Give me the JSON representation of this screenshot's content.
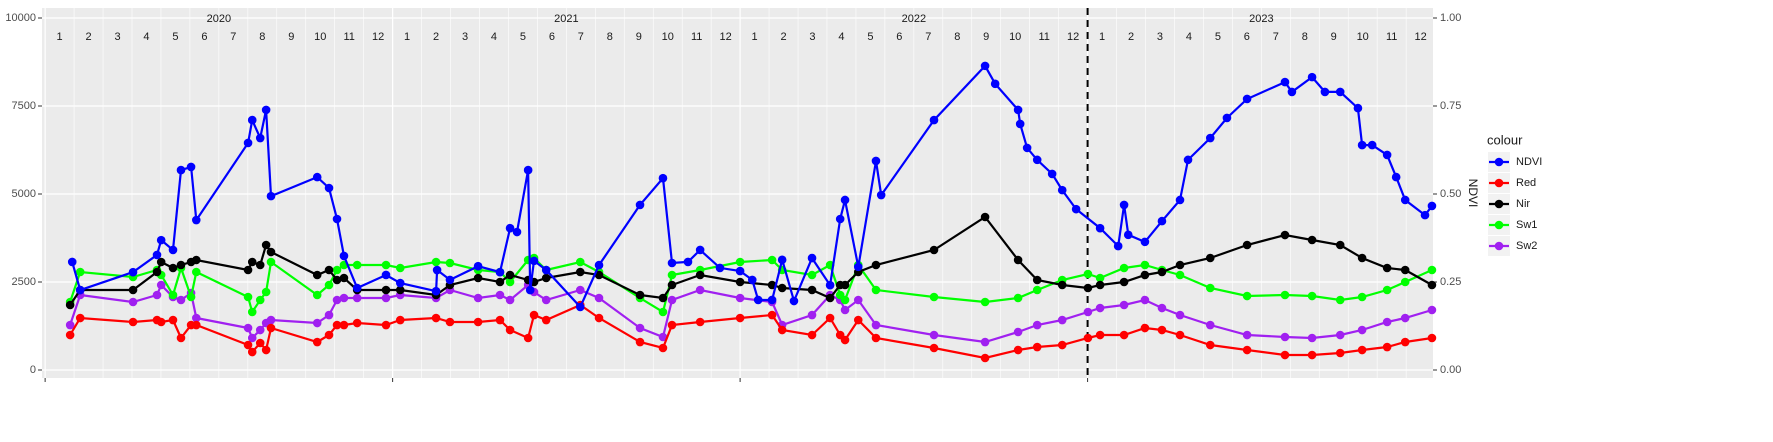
{
  "chart_data": {
    "type": "line",
    "y2label": "NDVI",
    "legend_title": "colour",
    "legend": "right",
    "grid": true,
    "strip": {
      "years": [
        "2020",
        "2021",
        "2022",
        "2023"
      ],
      "months": [
        "1",
        "2",
        "3",
        "4",
        "5",
        "6",
        "7",
        "8",
        "9",
        "10",
        "11",
        "12"
      ]
    },
    "xlim": [
      2019.991,
      2023.994
    ],
    "xticks": [
      2020,
      2021,
      2022,
      2023
    ],
    "vline": 2023,
    "ylim": [
      -227,
      10284
    ],
    "yticks": [
      0,
      2500,
      5000,
      7500,
      10000
    ],
    "y2lim": [
      -0.0227,
      1.0284
    ],
    "y2ticks": [
      {
        "value": 0,
        "label": "0.00"
      },
      {
        "value": 0.25,
        "label": "0.25"
      },
      {
        "value": 0.5,
        "label": "0.50"
      },
      {
        "value": 0.75,
        "label": "0.75"
      },
      {
        "value": 1,
        "label": "1.00"
      }
    ],
    "series": [
      {
        "name": "NDVI",
        "color": "#0000ff",
        "axis": "y2",
        "x": [
          2020.078,
          2020.101,
          2020.253,
          2020.322,
          2020.334,
          2020.368,
          2020.391,
          2020.42,
          2020.435,
          2020.584,
          2020.596,
          2020.619,
          2020.636,
          2020.65,
          2020.783,
          2020.817,
          2020.84,
          2020.86,
          2020.898,
          2020.981,
          2021.022,
          2021.125,
          2021.128,
          2021.165,
          2021.246,
          2021.309,
          2021.338,
          2021.358,
          2021.39,
          2021.396,
          2021.407,
          2021.442,
          2021.54,
          2021.594,
          2021.712,
          2021.778,
          2021.804,
          2021.85,
          2021.885,
          2021.942,
          2022.0,
          2022.035,
          2022.052,
          2022.092,
          2022.121,
          2022.155,
          2022.207,
          2022.259,
          2022.288,
          2022.302,
          2022.34,
          2022.391,
          2022.406,
          2022.558,
          2022.705,
          2022.734,
          2022.8,
          2022.806,
          2022.826,
          2022.855,
          2022.898,
          2022.927,
          2022.967,
          2023.036,
          2023.088,
          2023.105,
          2023.117,
          2023.165,
          2023.214,
          2023.266,
          2023.289,
          2023.353,
          2023.401,
          2023.459,
          2023.568,
          2023.588,
          2023.646,
          2023.683,
          2023.727,
          2023.778,
          2023.79,
          2023.819,
          2023.862,
          2023.888,
          2023.914,
          2023.971,
          2023.991
        ],
        "values": [
          0.307,
          0.227,
          0.278,
          0.327,
          0.369,
          0.341,
          0.568,
          0.577,
          0.426,
          0.645,
          0.71,
          0.659,
          0.739,
          0.494,
          0.548,
          0.517,
          0.429,
          0.324,
          0.233,
          0.27,
          0.247,
          0.224,
          0.284,
          0.256,
          0.295,
          0.278,
          0.403,
          0.392,
          0.568,
          0.227,
          0.31,
          0.284,
          0.179,
          0.298,
          0.469,
          0.545,
          0.304,
          0.307,
          0.341,
          0.29,
          0.281,
          0.256,
          0.199,
          0.199,
          0.313,
          0.196,
          0.318,
          0.241,
          0.429,
          0.483,
          0.293,
          0.594,
          0.497,
          0.71,
          0.864,
          0.813,
          0.739,
          0.699,
          0.631,
          0.597,
          0.557,
          0.511,
          0.457,
          0.403,
          0.352,
          0.469,
          0.384,
          0.364,
          0.423,
          0.483,
          0.597,
          0.659,
          0.716,
          0.77,
          0.818,
          0.79,
          0.832,
          0.79,
          0.79,
          0.744,
          0.639,
          0.639,
          0.611,
          0.548,
          0.483,
          0.44,
          0.466
        ]
      },
      {
        "name": "Red",
        "color": "#ff0000",
        "x": [
          2020.072,
          2020.101,
          2020.253,
          2020.322,
          2020.334,
          2020.368,
          2020.391,
          2020.42,
          2020.435,
          2020.584,
          2020.596,
          2020.619,
          2020.636,
          2020.65,
          2020.783,
          2020.817,
          2020.84,
          2020.86,
          2020.898,
          2020.981,
          2021.022,
          2021.125,
          2021.165,
          2021.246,
          2021.309,
          2021.338,
          2021.39,
          2021.407,
          2021.442,
          2021.54,
          2021.594,
          2021.712,
          2021.778,
          2021.804,
          2021.885,
          2022.0,
          2022.092,
          2022.121,
          2022.207,
          2022.259,
          2022.288,
          2022.302,
          2022.34,
          2022.391,
          2022.558,
          2022.705,
          2022.8,
          2022.855,
          2022.927,
          2023.001,
          2023.036,
          2023.105,
          2023.165,
          2023.214,
          2023.266,
          2023.353,
          2023.459,
          2023.568,
          2023.646,
          2023.727,
          2023.79,
          2023.862,
          2023.914,
          2023.991
        ],
        "values": [
          994,
          1477,
          1364,
          1420,
          1364,
          1420,
          909,
          1278,
          1278,
          710,
          511,
          767,
          568,
          1193,
          795,
          994,
          1278,
          1278,
          1335,
          1278,
          1420,
          1477,
          1364,
          1364,
          1420,
          1136,
          909,
          1562,
          1420,
          1847,
          1477,
          795,
          625,
          1278,
          1364,
          1477,
          1562,
          1136,
          994,
          1477,
          994,
          852,
          1420,
          909,
          625,
          341,
          568,
          653,
          710,
          909,
          994,
          994,
          1193,
          1136,
          994,
          710,
          568,
          426,
          426,
          483,
          568,
          653,
          795,
          909
        ]
      },
      {
        "name": "Nir",
        "color": "#000000",
        "x": [
          2020.072,
          2020.101,
          2020.253,
          2020.322,
          2020.334,
          2020.368,
          2020.391,
          2020.42,
          2020.435,
          2020.584,
          2020.596,
          2020.619,
          2020.636,
          2020.65,
          2020.783,
          2020.817,
          2020.84,
          2020.86,
          2020.898,
          2020.981,
          2021.022,
          2021.125,
          2021.165,
          2021.246,
          2021.309,
          2021.338,
          2021.39,
          2021.407,
          2021.442,
          2021.54,
          2021.594,
          2021.712,
          2021.778,
          2021.804,
          2021.885,
          2022.0,
          2022.092,
          2022.121,
          2022.207,
          2022.259,
          2022.288,
          2022.302,
          2022.34,
          2022.391,
          2022.558,
          2022.705,
          2022.8,
          2022.855,
          2022.927,
          2023.001,
          2023.036,
          2023.105,
          2023.165,
          2023.214,
          2023.266,
          2023.353,
          2023.459,
          2023.568,
          2023.646,
          2023.727,
          2023.79,
          2023.862,
          2023.914,
          2023.991
        ],
        "values": [
          1847,
          2273,
          2273,
          2784,
          3068,
          2898,
          2983,
          3068,
          3125,
          2841,
          3068,
          2983,
          3551,
          3352,
          2699,
          2841,
          2557,
          2614,
          2273,
          2273,
          2273,
          2131,
          2415,
          2614,
          2500,
          2699,
          2557,
          2500,
          2614,
          2784,
          2699,
          2131,
          2046,
          2415,
          2699,
          2500,
          2415,
          2330,
          2273,
          2046,
          2415,
          2415,
          2784,
          2983,
          3409,
          4347,
          3125,
          2557,
          2415,
          2330,
          2415,
          2500,
          2699,
          2784,
          2983,
          3182,
          3551,
          3835,
          3693,
          3551,
          3182,
          2898,
          2841,
          2415
        ]
      },
      {
        "name": "Sw1",
        "color": "#00ff00",
        "x": [
          2020.072,
          2020.101,
          2020.253,
          2020.322,
          2020.334,
          2020.368,
          2020.391,
          2020.42,
          2020.435,
          2020.584,
          2020.596,
          2020.619,
          2020.636,
          2020.65,
          2020.783,
          2020.817,
          2020.84,
          2020.86,
          2020.898,
          2020.981,
          2021.022,
          2021.125,
          2021.165,
          2021.246,
          2021.309,
          2021.338,
          2021.39,
          2021.407,
          2021.442,
          2021.54,
          2021.594,
          2021.712,
          2021.778,
          2021.804,
          2021.885,
          2022.0,
          2022.092,
          2022.121,
          2022.207,
          2022.259,
          2022.288,
          2022.302,
          2022.34,
          2022.391,
          2022.558,
          2022.705,
          2022.8,
          2022.855,
          2022.927,
          2023.001,
          2023.036,
          2023.105,
          2023.165,
          2023.214,
          2023.266,
          2023.353,
          2023.459,
          2023.568,
          2023.646,
          2023.727,
          2023.79,
          2023.862,
          2023.914,
          2023.991
        ],
        "values": [
          1932,
          2784,
          2642,
          2841,
          2699,
          2131,
          2898,
          2074,
          2784,
          2074,
          1648,
          1989,
          2216,
          3068,
          2131,
          2415,
          2841,
          2983,
          2983,
          2983,
          2898,
          3068,
          3040,
          2841,
          2784,
          2500,
          3125,
          3182,
          2841,
          3068,
          2784,
          2046,
          1648,
          2699,
          2841,
          3068,
          3125,
          2841,
          2699,
          2983,
          2131,
          1989,
          2983,
          2273,
          2074,
          1932,
          2046,
          2273,
          2557,
          2727,
          2614,
          2898,
          2983,
          2841,
          2699,
          2330,
          2102,
          2131,
          2102,
          1989,
          2074,
          2273,
          2500,
          2841
        ]
      },
      {
        "name": "Sw2",
        "color": "#a020f0",
        "x": [
          2020.072,
          2020.101,
          2020.253,
          2020.322,
          2020.334,
          2020.368,
          2020.391,
          2020.42,
          2020.435,
          2020.584,
          2020.596,
          2020.619,
          2020.636,
          2020.65,
          2020.783,
          2020.817,
          2020.84,
          2020.86,
          2020.898,
          2020.981,
          2021.022,
          2021.125,
          2021.165,
          2021.246,
          2021.309,
          2021.338,
          2021.39,
          2021.407,
          2021.442,
          2021.54,
          2021.594,
          2021.712,
          2021.778,
          2021.804,
          2021.885,
          2022.0,
          2022.092,
          2022.121,
          2022.207,
          2022.259,
          2022.288,
          2022.302,
          2022.34,
          2022.391,
          2022.558,
          2022.705,
          2022.8,
          2022.855,
          2022.927,
          2023.001,
          2023.036,
          2023.105,
          2023.165,
          2023.214,
          2023.266,
          2023.353,
          2023.459,
          2023.568,
          2023.646,
          2023.727,
          2023.79,
          2023.862,
          2023.914,
          2023.991
        ],
        "values": [
          1278,
          2131,
          1932,
          2131,
          2415,
          2074,
          1989,
          2188,
          1477,
          1193,
          909,
          1136,
          1335,
          1420,
          1335,
          1562,
          1989,
          2046,
          2046,
          2046,
          2131,
          2046,
          2273,
          2046,
          2131,
          1989,
          2415,
          2216,
          1989,
          2273,
          2046,
          1193,
          938,
          1989,
          2273,
          2046,
          1932,
          1278,
          1562,
          2131,
          1989,
          1705,
          1989,
          1278,
          994,
          795,
          1080,
          1278,
          1420,
          1648,
          1761,
          1847,
          1989,
          1761,
          1562,
          1278,
          994,
          938,
          909,
          994,
          1136,
          1364,
          1477,
          1705
        ]
      }
    ]
  }
}
